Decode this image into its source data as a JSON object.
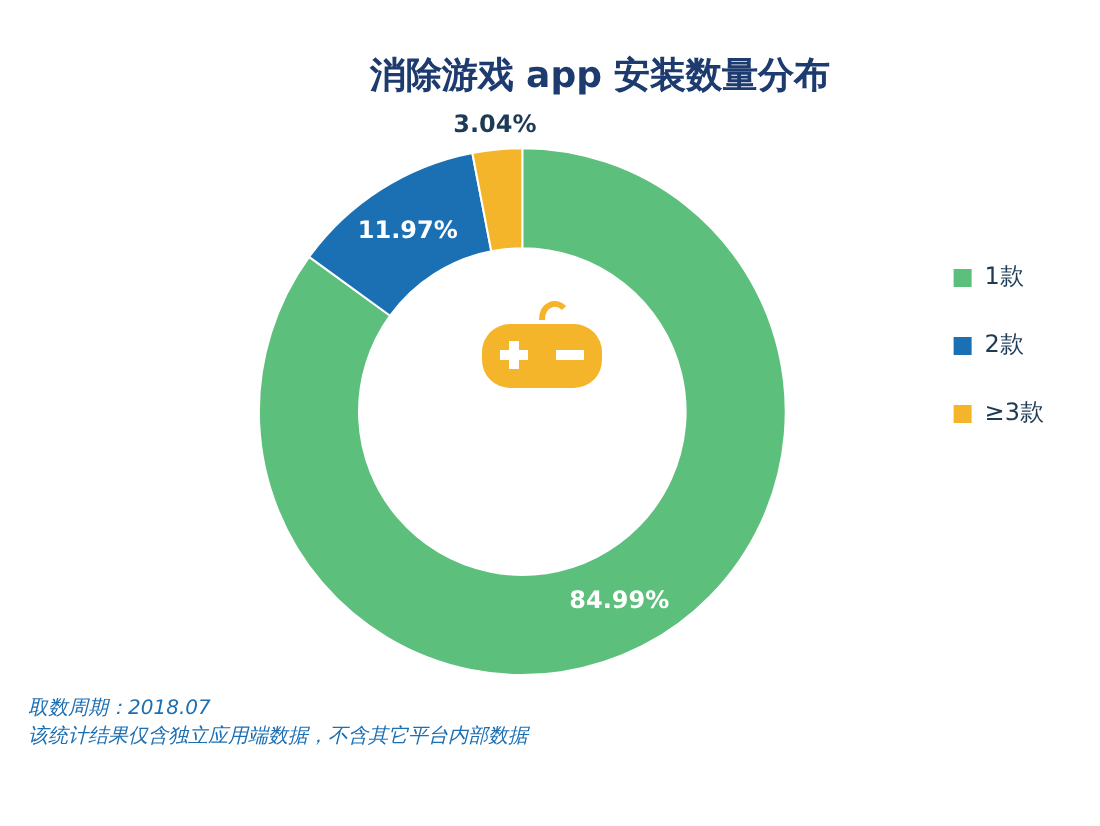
{
  "chart_data": {
    "type": "donut",
    "title": "消除游戏 app 安装数量分布",
    "categories": [
      "1款",
      "2款",
      "≥3款"
    ],
    "values": [
      84.99,
      11.97,
      3.04
    ],
    "colors": [
      "#5dbf7c",
      "#1b6fb3",
      "#f5b52a"
    ],
    "value_labels": [
      "84.99%",
      "11.97%",
      "3.04%"
    ],
    "legend": "right",
    "annotations": [
      "取数周期：2018.07",
      "该统计结果仅含独立应用端数据，不含其它平台内部数据"
    ]
  }
}
